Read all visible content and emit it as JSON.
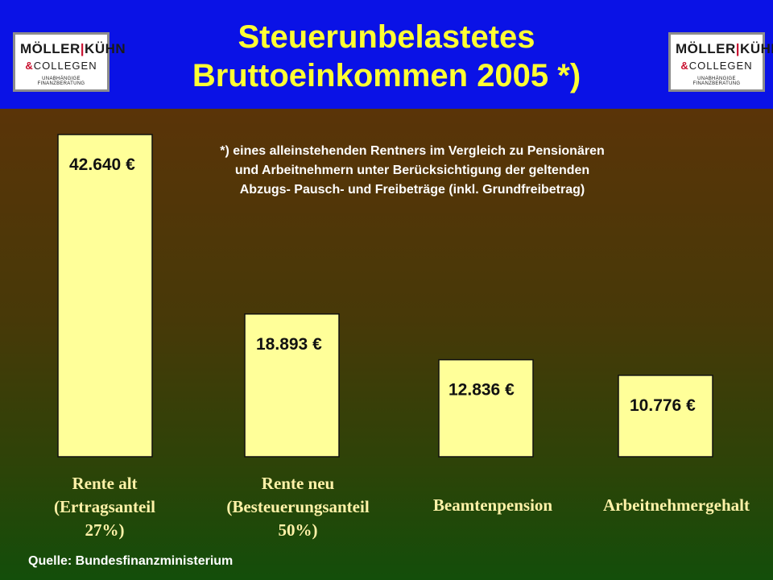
{
  "title_line1": "Steuerunbelastetes",
  "title_line2": "Bruttoeinkommen 2005 *)",
  "logo": {
    "line1_left": "MÖLLER",
    "line1_sep": "|",
    "line1_right": "KÜHN",
    "line2_amp": "&",
    "line2": "COLLEGEN",
    "line3": "UNABHÄNGIGE FINANZBERATUNG"
  },
  "note": "*) eines alleinstehenden Rentners im Vergleich zu Pensionären und Arbeitnehmern unter Berücksichtigung der geltenden Abzugs- Pausch- und Freibeträge (inkl. Grundfreibetrag)",
  "source": "Quelle: Bundesfinanzministerium",
  "colors": {
    "header": "#0a12e6",
    "title": "#ffff33",
    "bar": "#ffff99",
    "category_text": "#fff2a8"
  },
  "chart_data": {
    "type": "bar",
    "categories": [
      "Rente alt (Ertragsanteil 27%)",
      "Rente neu (Besteuerungsanteil 50%)",
      "Beamtenpension",
      "Arbeitnehmergehalt"
    ],
    "category_lines": [
      [
        "Rente alt",
        "(Ertragsanteil",
        "27%)"
      ],
      [
        "Rente neu",
        "(Besteuerungsanteil",
        "50%)"
      ],
      [
        "Beamtenpension"
      ],
      [
        "Arbeitnehmergehalt"
      ]
    ],
    "values": [
      42640,
      18893,
      12836,
      10776
    ],
    "data_labels": [
      "42.640 €",
      "18.893 €",
      "12.836 €",
      "10.776 €"
    ],
    "unit": "€",
    "ylim": [
      0,
      42640
    ],
    "grid": false,
    "legend": "none"
  }
}
